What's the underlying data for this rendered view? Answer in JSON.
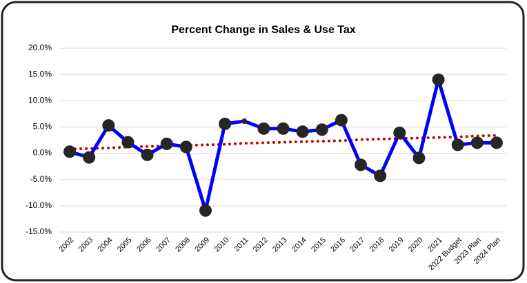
{
  "chart_data": {
    "type": "line",
    "title": "Percent Change in Sales & Use Tax",
    "categories": [
      "2002",
      "2003",
      "2004",
      "2005",
      "2006",
      "2007",
      "2008",
      "2009",
      "2010",
      "2011",
      "2012",
      "2013",
      "2014",
      "2015",
      "2016",
      "2017",
      "2018",
      "2019",
      "2020",
      "2021",
      "2022 Budget",
      "2023 Plan",
      "2024 Plan"
    ],
    "series": [
      {
        "color": "#0000ff",
        "marker_color": "#262626",
        "line": "solid",
        "values": [
          0.3,
          -0.8,
          5.3,
          2.1,
          -0.3,
          1.8,
          1.2,
          -10.9,
          5.6,
          6.1,
          4.7,
          4.7,
          4.1,
          4.5,
          6.3,
          -2.2,
          -4.3,
          3.9,
          -0.9,
          14.0,
          1.6,
          2.0,
          2.0
        ],
        "large_markers": [
          true,
          true,
          true,
          true,
          true,
          true,
          true,
          true,
          true,
          false,
          true,
          true,
          true,
          true,
          true,
          true,
          true,
          true,
          true,
          true,
          true,
          true,
          true
        ]
      },
      {
        "color": "#c00000",
        "line": "dotted",
        "values": [
          0.8,
          0.9,
          1.0,
          1.2,
          1.3,
          1.4,
          1.5,
          1.6,
          1.7,
          1.9,
          2.0,
          2.1,
          2.2,
          2.3,
          2.4,
          2.6,
          2.7,
          2.8,
          2.9,
          3.0,
          3.1,
          3.3,
          3.4
        ]
      }
    ],
    "ylim": [
      -15,
      20
    ],
    "yticks": [
      {
        "value": -15,
        "label": "-15.0%"
      },
      {
        "value": -10,
        "label": "-10.0%"
      },
      {
        "value": -5,
        "label": "-5.0%"
      },
      {
        "value": 0,
        "label": "0.0%"
      },
      {
        "value": 5,
        "label": "5.0%"
      },
      {
        "value": 10,
        "label": "10.0%"
      },
      {
        "value": 15,
        "label": "15.0%"
      },
      {
        "value": 20,
        "label": "20.0%"
      }
    ],
    "grid": true
  }
}
